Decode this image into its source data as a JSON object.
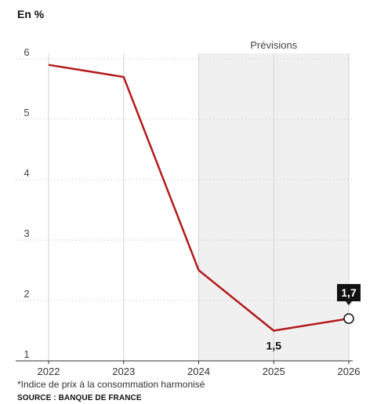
{
  "chart_data": {
    "type": "line",
    "unit_label": "En %",
    "x": [
      "2022",
      "2023",
      "2024",
      "2025",
      "2026"
    ],
    "series": [
      {
        "values": [
          5.9,
          5.7,
          2.5,
          1.5,
          1.7
        ],
        "color": "#b31b1b"
      }
    ],
    "ylim": [
      1,
      6
    ],
    "yticks": [
      "1",
      "2",
      "3",
      "4",
      "5",
      "6"
    ],
    "forecast": {
      "label": "Prévisions",
      "from": "2024",
      "to": "2026",
      "fill": "#f0f0f0"
    },
    "annotations": [
      {
        "x": "2025",
        "label": "1,5",
        "style": "plain"
      },
      {
        "x": "2026",
        "label": "1,7",
        "style": "boxed"
      }
    ],
    "grid": true,
    "legend": "none",
    "footnote": "*Indice de prix à la consommation harmonisé",
    "source": "SOURCE : BANQUE DE FRANCE"
  }
}
